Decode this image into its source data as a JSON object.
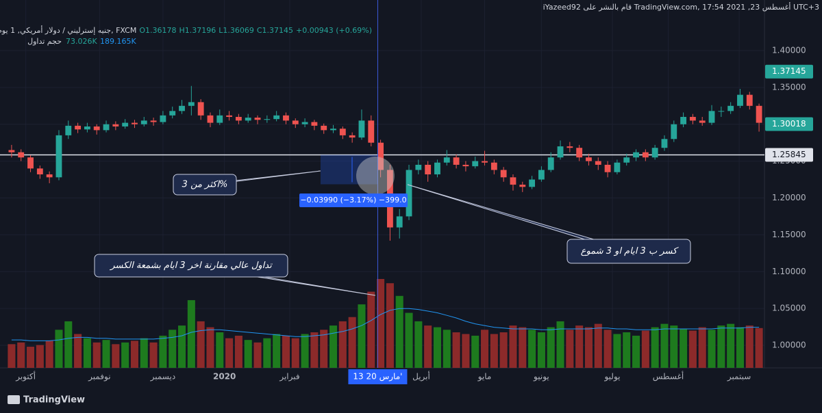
{
  "chart_data": {
    "type": "candlestick",
    "title": "iYazeed92 قام بالنشر على TradingView.com, 17:54 2021 ,أغسطس 23 UTC+3",
    "symbol": "جنيه إسترليني / دولار أمريكي, 1 يوم, FXCM",
    "legend_values": [
      "O1.36178",
      "H1.37196",
      "L1.36069",
      "C1.37145",
      "+0.00943 (+0.69%)"
    ],
    "volume_label": "حجم تداول",
    "volume_values": [
      "73.026K",
      "189.165K"
    ],
    "ylim": [
      0.9694,
      1.4408
    ],
    "yticks": [
      {
        "value": 1.4,
        "label": "1.40000"
      },
      {
        "value": 1.35,
        "label": "1.35000"
      },
      {
        "value": 1.3,
        "label": "1.30000"
      },
      {
        "value": 1.25,
        "label": "1.25000"
      },
      {
        "value": 1.2,
        "label": "1.20000"
      },
      {
        "value": 1.15,
        "label": "1.15000"
      },
      {
        "value": 1.1,
        "label": "1.10000"
      },
      {
        "value": 1.05,
        "label": "1.05000"
      },
      {
        "value": 1.0,
        "label": "1.00000"
      }
    ],
    "price_badges": [
      1.37145,
      1.30018
    ],
    "hline": 1.25845,
    "up_color": "#26a69a",
    "down_color": "#ef5350",
    "ohlc": [
      [
        1.265,
        1.272,
        1.255,
        1.262
      ],
      [
        1.262,
        1.266,
        1.25,
        1.255
      ],
      [
        1.255,
        1.258,
        1.235,
        1.24
      ],
      [
        1.24,
        1.244,
        1.226,
        1.232
      ],
      [
        1.232,
        1.236,
        1.22,
        1.228
      ],
      [
        1.228,
        1.292,
        1.224,
        1.285
      ],
      [
        1.285,
        1.305,
        1.28,
        1.298
      ],
      [
        1.298,
        1.302,
        1.288,
        1.293
      ],
      [
        1.293,
        1.302,
        1.289,
        1.297
      ],
      [
        1.297,
        1.3,
        1.286,
        1.292
      ],
      [
        1.292,
        1.305,
        1.289,
        1.3
      ],
      [
        1.3,
        1.304,
        1.292,
        1.297
      ],
      [
        1.297,
        1.307,
        1.294,
        1.302
      ],
      [
        1.302,
        1.306,
        1.295,
        1.3
      ],
      [
        1.3,
        1.31,
        1.297,
        1.305
      ],
      [
        1.305,
        1.309,
        1.298,
        1.303
      ],
      [
        1.303,
        1.318,
        1.3,
        1.312
      ],
      [
        1.312,
        1.324,
        1.308,
        1.318
      ],
      [
        1.318,
        1.333,
        1.314,
        1.325
      ],
      [
        1.325,
        1.352,
        1.312,
        1.33
      ],
      [
        1.33,
        1.334,
        1.306,
        1.312
      ],
      [
        1.312,
        1.316,
        1.296,
        1.302
      ],
      [
        1.302,
        1.32,
        1.299,
        1.312
      ],
      [
        1.312,
        1.318,
        1.305,
        1.31
      ],
      [
        1.31,
        1.314,
        1.3,
        1.305
      ],
      [
        1.305,
        1.314,
        1.302,
        1.309
      ],
      [
        1.309,
        1.312,
        1.3,
        1.306
      ],
      [
        1.306,
        1.312,
        1.302,
        1.307
      ],
      [
        1.307,
        1.318,
        1.304,
        1.312
      ],
      [
        1.312,
        1.316,
        1.3,
        1.305
      ],
      [
        1.305,
        1.308,
        1.295,
        1.3
      ],
      [
        1.3,
        1.308,
        1.296,
        1.303
      ],
      [
        1.303,
        1.306,
        1.292,
        1.298
      ],
      [
        1.298,
        1.301,
        1.287,
        1.292
      ],
      [
        1.292,
        1.299,
        1.288,
        1.294
      ],
      [
        1.294,
        1.297,
        1.28,
        1.285
      ],
      [
        1.285,
        1.289,
        1.275,
        1.282
      ],
      [
        1.282,
        1.32,
        1.279,
        1.305
      ],
      [
        1.305,
        1.312,
        1.27,
        1.275
      ],
      [
        1.275,
        1.279,
        1.228,
        1.238
      ],
      [
        1.238,
        1.245,
        1.142,
        1.16
      ],
      [
        1.16,
        1.185,
        1.145,
        1.175
      ],
      [
        1.175,
        1.245,
        1.17,
        1.238
      ],
      [
        1.238,
        1.252,
        1.232,
        1.245
      ],
      [
        1.245,
        1.25,
        1.222,
        1.232
      ],
      [
        1.232,
        1.252,
        1.228,
        1.248
      ],
      [
        1.248,
        1.265,
        1.244,
        1.255
      ],
      [
        1.255,
        1.259,
        1.24,
        1.245
      ],
      [
        1.245,
        1.25,
        1.236,
        1.243
      ],
      [
        1.243,
        1.256,
        1.24,
        1.25
      ],
      [
        1.25,
        1.264,
        1.244,
        1.248
      ],
      [
        1.248,
        1.252,
        1.232,
        1.238
      ],
      [
        1.238,
        1.242,
        1.222,
        1.228
      ],
      [
        1.228,
        1.232,
        1.21,
        1.218
      ],
      [
        1.218,
        1.222,
        1.208,
        1.215
      ],
      [
        1.215,
        1.23,
        1.212,
        1.225
      ],
      [
        1.225,
        1.243,
        1.222,
        1.238
      ],
      [
        1.238,
        1.262,
        1.235,
        1.255
      ],
      [
        1.255,
        1.278,
        1.252,
        1.27
      ],
      [
        1.27,
        1.276,
        1.262,
        1.268
      ],
      [
        1.268,
        1.272,
        1.25,
        1.255
      ],
      [
        1.255,
        1.26,
        1.244,
        1.25
      ],
      [
        1.25,
        1.255,
        1.238,
        1.245
      ],
      [
        1.245,
        1.25,
        1.228,
        1.235
      ],
      [
        1.235,
        1.252,
        1.232,
        1.248
      ],
      [
        1.248,
        1.26,
        1.244,
        1.255
      ],
      [
        1.255,
        1.266,
        1.25,
        1.262
      ],
      [
        1.262,
        1.266,
        1.25,
        1.255
      ],
      [
        1.255,
        1.272,
        1.252,
        1.268
      ],
      [
        1.268,
        1.285,
        1.264,
        1.28
      ],
      [
        1.28,
        1.305,
        1.276,
        1.3
      ],
      [
        1.3,
        1.316,
        1.296,
        1.31
      ],
      [
        1.31,
        1.314,
        1.3,
        1.305
      ],
      [
        1.305,
        1.31,
        1.298,
        1.302
      ],
      [
        1.302,
        1.326,
        1.299,
        1.318
      ],
      [
        1.318,
        1.324,
        1.31,
        1.318
      ],
      [
        1.318,
        1.33,
        1.314,
        1.325
      ],
      [
        1.325,
        1.348,
        1.322,
        1.34
      ],
      [
        1.34,
        1.344,
        1.32,
        1.325
      ],
      [
        1.325,
        1.328,
        1.29,
        1.302
      ]
    ],
    "volume": [
      28000,
      30000,
      25000,
      27000,
      32000,
      45000,
      55000,
      40000,
      35000,
      30000,
      33000,
      28000,
      30000,
      32000,
      35000,
      30000,
      38000,
      45000,
      50000,
      80000,
      55000,
      48000,
      42000,
      35000,
      38000,
      33000,
      30000,
      35000,
      40000,
      38000,
      35000,
      40000,
      42000,
      45000,
      50000,
      55000,
      60000,
      75000,
      90000,
      105000,
      100000,
      85000,
      65000,
      55000,
      50000,
      48000,
      45000,
      42000,
      40000,
      38000,
      45000,
      40000,
      42000,
      50000,
      48000,
      45000,
      42000,
      48000,
      55000,
      45000,
      50000,
      48000,
      52000,
      45000,
      40000,
      42000,
      38000,
      44000,
      48000,
      52000,
      50000,
      46000,
      44000,
      48000,
      45000,
      50000,
      52000,
      48000,
      50000,
      47000
    ],
    "volume_ma": [
      33000,
      33000,
      32000,
      32000,
      32000,
      33000,
      35000,
      36000,
      36000,
      35000,
      35000,
      34000,
      34000,
      34000,
      34000,
      34000,
      35000,
      36000,
      38000,
      42000,
      44000,
      45000,
      45000,
      44000,
      43000,
      42000,
      41000,
      40000,
      39000,
      38000,
      37000,
      37000,
      38000,
      39000,
      41000,
      43000,
      46000,
      50000,
      56000,
      63000,
      68000,
      70000,
      70000,
      69000,
      67000,
      65000,
      62000,
      59000,
      55000,
      52000,
      50000,
      48000,
      47000,
      46000,
      46000,
      46000,
      45000,
      45000,
      46000,
      46000,
      46000,
      46000,
      47000,
      47000,
      46000,
      46000,
      45000,
      45000,
      45000,
      46000,
      46000,
      46000,
      46000,
      46000,
      46000,
      47000,
      47000,
      47000,
      48000,
      48000
    ],
    "xlabels": [
      {
        "label": "أكتوبر",
        "candle": 1.5
      },
      {
        "label": "نوفمبر",
        "candle": 9.3
      },
      {
        "label": "ديسمبر",
        "candle": 16
      },
      {
        "label": "2020",
        "candle": 22.5
      },
      {
        "label": "فبراير",
        "candle": 29.4
      },
      {
        "label": "أبريل",
        "candle": 43.3
      },
      {
        "label": "مايو",
        "candle": 50
      },
      {
        "label": "يونيو",
        "candle": 56
      },
      {
        "label": "يوليو",
        "candle": 63.5
      },
      {
        "label": "أغسطس",
        "candle": 69.4
      },
      {
        "label": "سبتمبر",
        "candle": 76.9
      }
    ],
    "crosshair": {
      "label": "13 مارس 20'",
      "candle": 38.7
    },
    "measure_label": "−0.03990 (−3.17%) −399.0",
    "annotations": [
      "اكثر من 3%",
      "كسر ب 3 ايام او 3 شموع",
      "تداول عالي مقارنة اخر 3 ايام بشمعة الكسر"
    ],
    "footer": "TradingView"
  }
}
